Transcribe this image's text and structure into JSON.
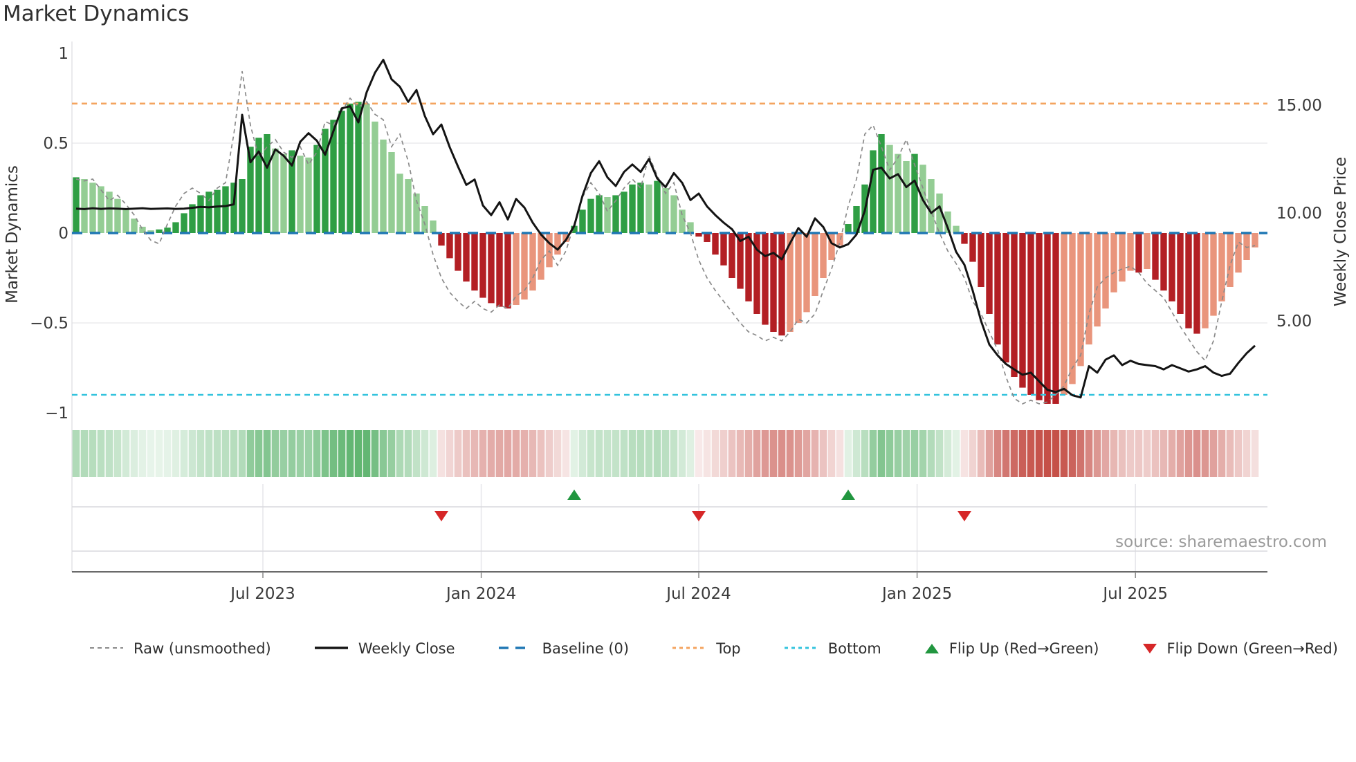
{
  "title": "Market Dynamics",
  "source": "source: sharemaestro.com",
  "legend": {
    "items": [
      {
        "swatch": "dash-gray",
        "label": "Raw (unsmoothed)"
      },
      {
        "swatch": "line-black",
        "label": "Weekly Close"
      },
      {
        "swatch": "dash-blue",
        "label": "Baseline (0)"
      },
      {
        "swatch": "dot-orange",
        "label": "Top"
      },
      {
        "swatch": "dot-cyan",
        "label": "Bottom"
      },
      {
        "swatch": "tri-up",
        "label": "Flip Up (Red→Green)"
      },
      {
        "swatch": "tri-down",
        "label": "Flip Down (Green→Red)"
      }
    ]
  },
  "colors": {
    "bar_up_strong": "#2f9e44",
    "bar_up_weak": "#94cd94",
    "bar_down_strong": "#b31f24",
    "bar_down_weak": "#e9957c",
    "heat_up": "#2f9e44",
    "heat_down": "#c24840",
    "raw_line": "#8a8a8a",
    "close_line": "#141414",
    "baseline": "#1f77b4",
    "top_line": "#f4a45f",
    "bottom_line": "#33c3dd",
    "flip_up": "#21963f",
    "flip_down": "#d62728",
    "grid": "#e7e7eb",
    "axis": "#555555",
    "tick_text": "#3a3a3a",
    "source_text": "#9b9b9b"
  },
  "chart_data": {
    "type": "bar",
    "title": "Market Dynamics",
    "left_axis": {
      "label": "Market Dynamics",
      "tick_labels": [
        "1",
        "0.5",
        "0",
        "−0.5",
        "−1"
      ],
      "tick_values": [
        1,
        0.5,
        0,
        -0.5,
        -1
      ],
      "range": [
        -1.05,
        1.05
      ]
    },
    "right_axis": {
      "label": "Weekly Close Price",
      "tick_labels": [
        "15.00",
        "10.00",
        "5.00"
      ],
      "tick_values": [
        15,
        10,
        5
      ]
    },
    "x_tick_labels": [
      "Jul 2023",
      "Jan 2024",
      "Jul 2024",
      "Jan 2025",
      "Jul 2025"
    ],
    "baseline": 0,
    "top_threshold": 0.72,
    "bottom_threshold": -0.9,
    "weeks": 143,
    "flip_up_weeks": [
      60,
      93
    ],
    "flip_down_weeks": [
      44,
      75,
      107
    ],
    "series": [
      {
        "name": "Market Dynamics (smoothed bars)",
        "type": "bar",
        "axis": "left",
        "values": [
          0.31,
          0.3,
          0.28,
          0.26,
          0.23,
          0.19,
          0.13,
          0.08,
          0.035,
          0.015,
          0.02,
          0.03,
          0.06,
          0.11,
          0.16,
          0.21,
          0.23,
          0.24,
          0.26,
          0.28,
          0.3,
          0.48,
          0.53,
          0.55,
          0.47,
          0.44,
          0.46,
          0.43,
          0.42,
          0.49,
          0.58,
          0.63,
          0.68,
          0.72,
          0.73,
          0.72,
          0.62,
          0.52,
          0.45,
          0.33,
          0.3,
          0.22,
          0.15,
          0.07,
          -0.07,
          -0.14,
          -0.21,
          -0.27,
          -0.32,
          -0.36,
          -0.39,
          -0.41,
          -0.42,
          -0.4,
          -0.37,
          -0.32,
          -0.26,
          -0.19,
          -0.12,
          -0.05,
          0.04,
          0.13,
          0.19,
          0.21,
          0.2,
          0.21,
          0.23,
          0.27,
          0.28,
          0.27,
          0.29,
          0.25,
          0.21,
          0.13,
          0.06,
          -0.02,
          -0.05,
          -0.12,
          -0.18,
          -0.25,
          -0.31,
          -0.38,
          -0.45,
          -0.51,
          -0.55,
          -0.57,
          -0.55,
          -0.5,
          -0.44,
          -0.35,
          -0.25,
          -0.15,
          -0.07,
          0.05,
          0.15,
          0.27,
          0.46,
          0.55,
          0.49,
          0.44,
          0.4,
          0.44,
          0.38,
          0.3,
          0.22,
          0.12,
          0.04,
          -0.06,
          -0.16,
          -0.3,
          -0.45,
          -0.62,
          -0.72,
          -0.8,
          -0.86,
          -0.9,
          -0.93,
          -0.95,
          -0.95,
          -0.9,
          -0.84,
          -0.74,
          -0.62,
          -0.52,
          -0.42,
          -0.33,
          -0.27,
          -0.21,
          -0.22,
          -0.2,
          -0.26,
          -0.32,
          -0.38,
          -0.45,
          -0.53,
          -0.56,
          -0.53,
          -0.46,
          -0.38,
          -0.3,
          -0.22,
          -0.15,
          -0.08
        ]
      },
      {
        "name": "Raw (unsmoothed)",
        "type": "line",
        "axis": "left",
        "values": [
          0.3,
          0.29,
          0.3,
          0.24,
          0.18,
          0.21,
          0.16,
          0.1,
          0.02,
          -0.04,
          -0.06,
          0.05,
          0.15,
          0.22,
          0.25,
          0.22,
          0.18,
          0.25,
          0.28,
          0.55,
          0.9,
          0.6,
          0.42,
          0.48,
          0.52,
          0.45,
          0.42,
          0.48,
          0.38,
          0.45,
          0.62,
          0.6,
          0.68,
          0.75,
          0.7,
          0.73,
          0.66,
          0.63,
          0.48,
          0.55,
          0.4,
          0.18,
          0.05,
          -0.12,
          -0.25,
          -0.33,
          -0.38,
          -0.42,
          -0.38,
          -0.42,
          -0.44,
          -0.4,
          -0.42,
          -0.35,
          -0.32,
          -0.25,
          -0.15,
          -0.1,
          -0.18,
          -0.1,
          0.05,
          0.2,
          0.28,
          0.22,
          0.12,
          0.18,
          0.25,
          0.3,
          0.25,
          0.43,
          0.32,
          0.22,
          0.28,
          0.1,
          0.0,
          -0.15,
          -0.25,
          -0.32,
          -0.38,
          -0.44,
          -0.5,
          -0.55,
          -0.57,
          -0.6,
          -0.58,
          -0.6,
          -0.55,
          -0.48,
          -0.5,
          -0.45,
          -0.32,
          -0.2,
          -0.05,
          0.15,
          0.3,
          0.55,
          0.6,
          0.48,
          0.35,
          0.42,
          0.52,
          0.38,
          0.25,
          0.12,
          0.0,
          -0.1,
          -0.17,
          -0.25,
          -0.38,
          -0.45,
          -0.55,
          -0.65,
          -0.8,
          -0.92,
          -0.95,
          -0.93,
          -0.95,
          -0.94,
          -0.9,
          -0.85,
          -0.75,
          -0.68,
          -0.45,
          -0.3,
          -0.25,
          -0.22,
          -0.2,
          -0.185,
          -0.22,
          -0.28,
          -0.32,
          -0.36,
          -0.44,
          -0.52,
          -0.59,
          -0.66,
          -0.71,
          -0.6,
          -0.38,
          -0.18,
          -0.05,
          -0.08,
          -0.07
        ]
      },
      {
        "name": "Weekly Close",
        "type": "line",
        "axis": "right",
        "values": [
          10.2,
          10.18,
          10.22,
          10.19,
          10.21,
          10.2,
          10.18,
          10.2,
          10.22,
          10.19,
          10.2,
          10.21,
          10.19,
          10.2,
          10.24,
          10.28,
          10.26,
          10.3,
          10.32,
          10.4,
          14.55,
          12.35,
          12.85,
          12.1,
          12.95,
          12.65,
          12.2,
          13.3,
          13.7,
          13.35,
          12.7,
          13.8,
          14.85,
          14.95,
          14.2,
          15.6,
          16.5,
          17.1,
          16.2,
          15.85,
          15.15,
          15.7,
          14.5,
          13.65,
          14.1,
          13.05,
          12.15,
          11.3,
          11.55,
          10.35,
          9.9,
          10.5,
          9.7,
          10.65,
          10.25,
          9.55,
          9.0,
          8.6,
          8.3,
          8.75,
          9.4,
          10.8,
          11.85,
          12.4,
          11.65,
          11.25,
          11.9,
          12.25,
          11.9,
          12.5,
          11.6,
          11.2,
          11.85,
          11.4,
          10.6,
          10.9,
          10.3,
          9.9,
          9.55,
          9.25,
          8.7,
          8.9,
          8.3,
          8.0,
          8.15,
          7.85,
          8.6,
          9.3,
          8.9,
          9.75,
          9.35,
          8.6,
          8.4,
          8.55,
          9.0,
          10.1,
          12.0,
          12.1,
          11.6,
          11.8,
          11.2,
          11.5,
          10.6,
          10.0,
          10.3,
          9.3,
          8.2,
          7.6,
          6.4,
          5.0,
          3.9,
          3.4,
          3.0,
          2.75,
          2.5,
          2.6,
          2.2,
          1.8,
          1.7,
          1.85,
          1.55,
          1.45,
          2.9,
          2.6,
          3.2,
          3.4,
          2.95,
          3.15,
          3.0,
          2.95,
          2.9,
          2.75,
          2.95,
          2.8,
          2.65,
          2.75,
          2.9,
          2.6,
          2.45,
          2.55,
          3.05,
          3.5,
          3.85
        ]
      }
    ],
    "heatmap": {
      "name": "Momentum heat strip",
      "note": "color = sign, intensity = |value| of smoothed bars"
    }
  }
}
